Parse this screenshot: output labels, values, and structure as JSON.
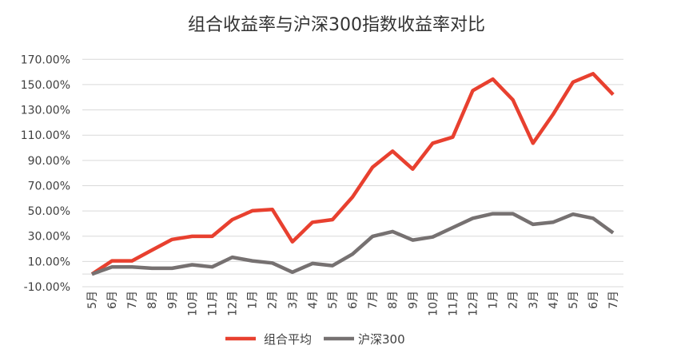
{
  "chart_data": {
    "type": "line",
    "title": "组合收益率与沪深300指数收益率对比",
    "xlabel": "",
    "ylabel": "",
    "categories": [
      "5月",
      "6月",
      "7月",
      "8月",
      "9月",
      "10月",
      "11月",
      "12月",
      "1月",
      "2月",
      "3月",
      "4月",
      "5月",
      "6月",
      "7月",
      "8月",
      "9月",
      "10月",
      "11月",
      "12月",
      "1月",
      "2月",
      "3月",
      "4月",
      "5月",
      "6月",
      "7月"
    ],
    "ylim": [
      -10,
      170
    ],
    "yticks": [
      "-10.00%",
      "10.00%",
      "30.00%",
      "50.00%",
      "70.00%",
      "90.00%",
      "110.00%",
      "130.00%",
      "150.00%",
      "170.00%"
    ],
    "grid": true,
    "legend": "bottom",
    "series": [
      {
        "name": "组合平均",
        "color": "#E8402F",
        "values": [
          0,
          10.5,
          10.5,
          19,
          27.4,
          29.9,
          29.9,
          43.1,
          50.1,
          51.2,
          25.6,
          41,
          43.1,
          61,
          84.6,
          97.3,
          83.1,
          103.6,
          108.4,
          145.3,
          154.3,
          137.9,
          103.6,
          126.3,
          152,
          158.6,
          142.1
        ]
      },
      {
        "name": "沪深300",
        "color": "#767171",
        "values": [
          0,
          5.7,
          5.7,
          4.6,
          4.6,
          7.4,
          5.7,
          13.3,
          10.5,
          8.8,
          1.5,
          8.4,
          6.7,
          15.8,
          29.9,
          33.7,
          26.9,
          29.4,
          36.8,
          44.2,
          47.8,
          47.8,
          39.4,
          41,
          47.4,
          44.2,
          32.6
        ]
      }
    ]
  }
}
